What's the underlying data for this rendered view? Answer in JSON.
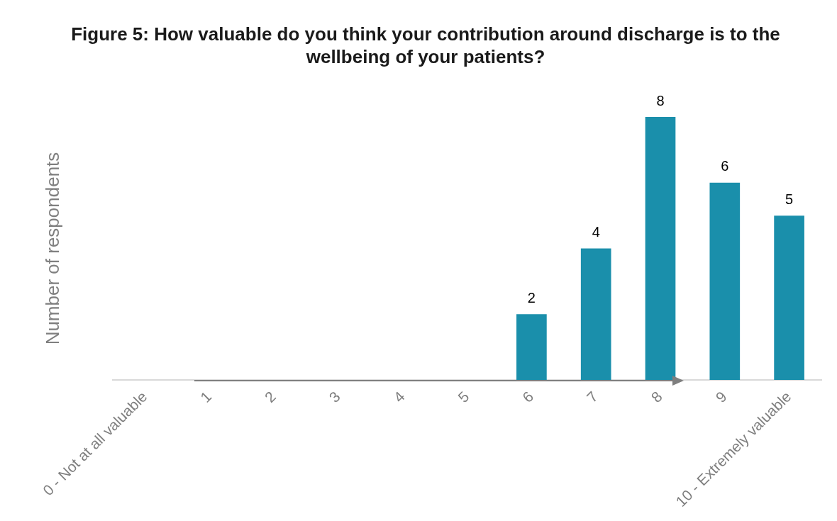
{
  "chart_data": {
    "type": "bar",
    "title": "Figure 5: How valuable do you think your contribution around discharge is to the wellbeing of your patients?",
    "ylabel": "Number of respondents",
    "categories": [
      "0 - Not at all valuable",
      "1",
      "2",
      "3",
      "4",
      "5",
      "6",
      "7",
      "8",
      "9",
      "10 - Extremely valuable"
    ],
    "values": [
      0,
      0,
      0,
      0,
      0,
      0,
      2,
      4,
      8,
      6,
      5
    ],
    "value_labels": [
      null,
      null,
      null,
      null,
      null,
      null,
      "2",
      "4",
      "8",
      "6",
      "5"
    ],
    "color": "#1a8fab",
    "grid": false,
    "legend": false,
    "tick_labels": "x"
  }
}
